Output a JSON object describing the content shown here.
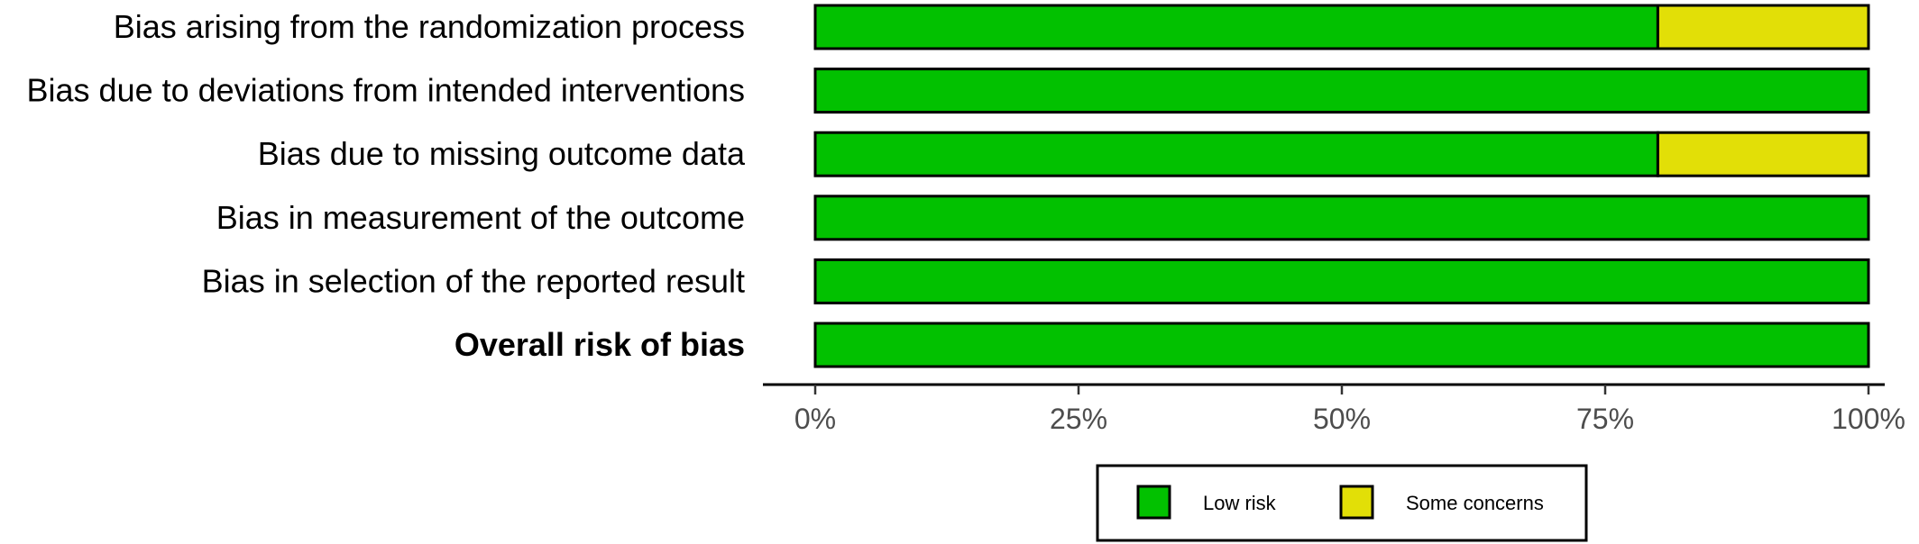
{
  "chart_data": {
    "type": "bar",
    "orientation": "horizontal",
    "stacked": true,
    "categories": [
      "Bias arising from the randomization process",
      "Bias due to deviations from intended interventions",
      "Bias due to missing outcome data",
      "Bias in measurement of the outcome",
      "Bias in selection of the reported result",
      "Overall risk of bias"
    ],
    "bold_categories": [
      "Overall risk of bias"
    ],
    "series": [
      {
        "name": "Low risk",
        "color": "#02C100",
        "values": [
          80,
          100,
          80,
          100,
          100,
          100
        ]
      },
      {
        "name": "Some concerns",
        "color": "#E2DF07",
        "values": [
          20,
          0,
          20,
          0,
          0,
          0
        ]
      }
    ],
    "x_ticks": [
      "0%",
      "25%",
      "50%",
      "75%",
      "100%"
    ],
    "xlim": [
      0,
      100
    ],
    "grid": false,
    "legend": {
      "position": "bottom",
      "items": [
        "Low risk",
        "Some concerns"
      ]
    }
  }
}
